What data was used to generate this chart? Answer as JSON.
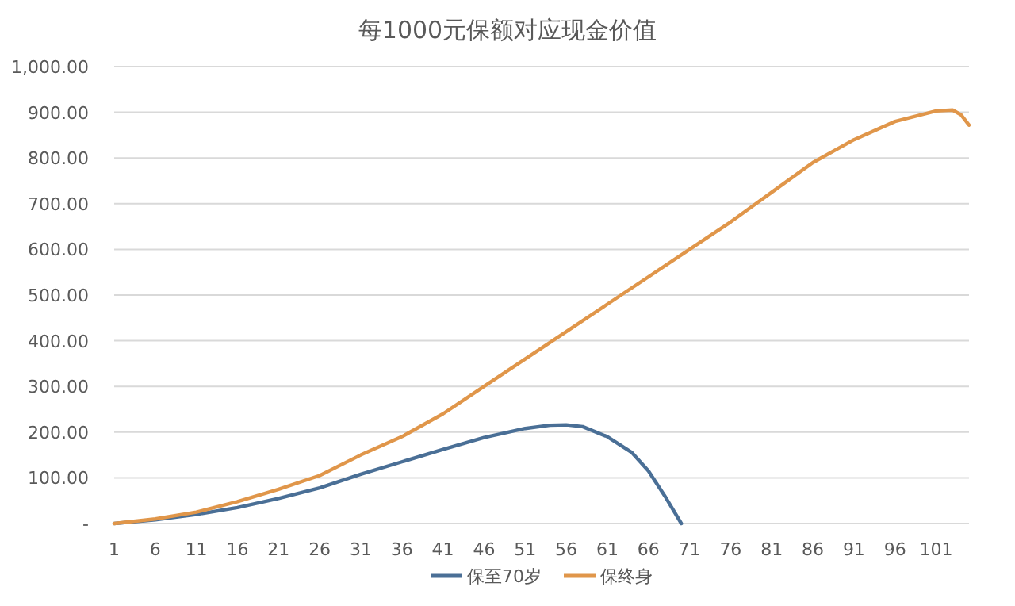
{
  "chart_data": {
    "type": "line",
    "title": "每1000元保额对应现金价值",
    "xlim": [
      1,
      105
    ],
    "xticks": [
      1,
      6,
      11,
      16,
      21,
      26,
      31,
      36,
      41,
      46,
      51,
      56,
      61,
      66,
      71,
      76,
      81,
      86,
      91,
      96,
      101
    ],
    "ylim": [
      0,
      1000
    ],
    "yticks": [
      {
        "value": 0,
        "label": "-"
      },
      {
        "value": 100,
        "label": "100.00"
      },
      {
        "value": 200,
        "label": "200.00"
      },
      {
        "value": 300,
        "label": "300.00"
      },
      {
        "value": 400,
        "label": "400.00"
      },
      {
        "value": 500,
        "label": "500.00"
      },
      {
        "value": 600,
        "label": "600.00"
      },
      {
        "value": 700,
        "label": "700.00"
      },
      {
        "value": 800,
        "label": "800.00"
      },
      {
        "value": 900,
        "label": "900.00"
      },
      {
        "value": 1000,
        "label": "1,000.00"
      }
    ],
    "grid": "y",
    "legend": "bottom",
    "marker": "none",
    "line_style": "solid",
    "series": [
      {
        "name": "保至70岁",
        "color": "#4a6f96",
        "x": [
          1,
          6,
          11,
          16,
          21,
          26,
          31,
          36,
          41,
          46,
          51,
          54,
          56,
          58,
          61,
          64,
          66,
          68,
          70
        ],
        "values": [
          0,
          8,
          20,
          35,
          55,
          78,
          108,
          135,
          162,
          188,
          208,
          215,
          216,
          212,
          190,
          155,
          115,
          60,
          0
        ]
      },
      {
        "name": "保终身",
        "color": "#e0964a",
        "x": [
          1,
          6,
          11,
          16,
          21,
          26,
          31,
          36,
          41,
          46,
          51,
          56,
          61,
          66,
          71,
          76,
          81,
          86,
          91,
          96,
          101,
          103,
          104,
          105
        ],
        "values": [
          0,
          10,
          25,
          48,
          75,
          105,
          150,
          190,
          240,
          300,
          360,
          420,
          480,
          540,
          600,
          660,
          725,
          790,
          840,
          880,
          903,
          905,
          895,
          872
        ]
      }
    ]
  }
}
